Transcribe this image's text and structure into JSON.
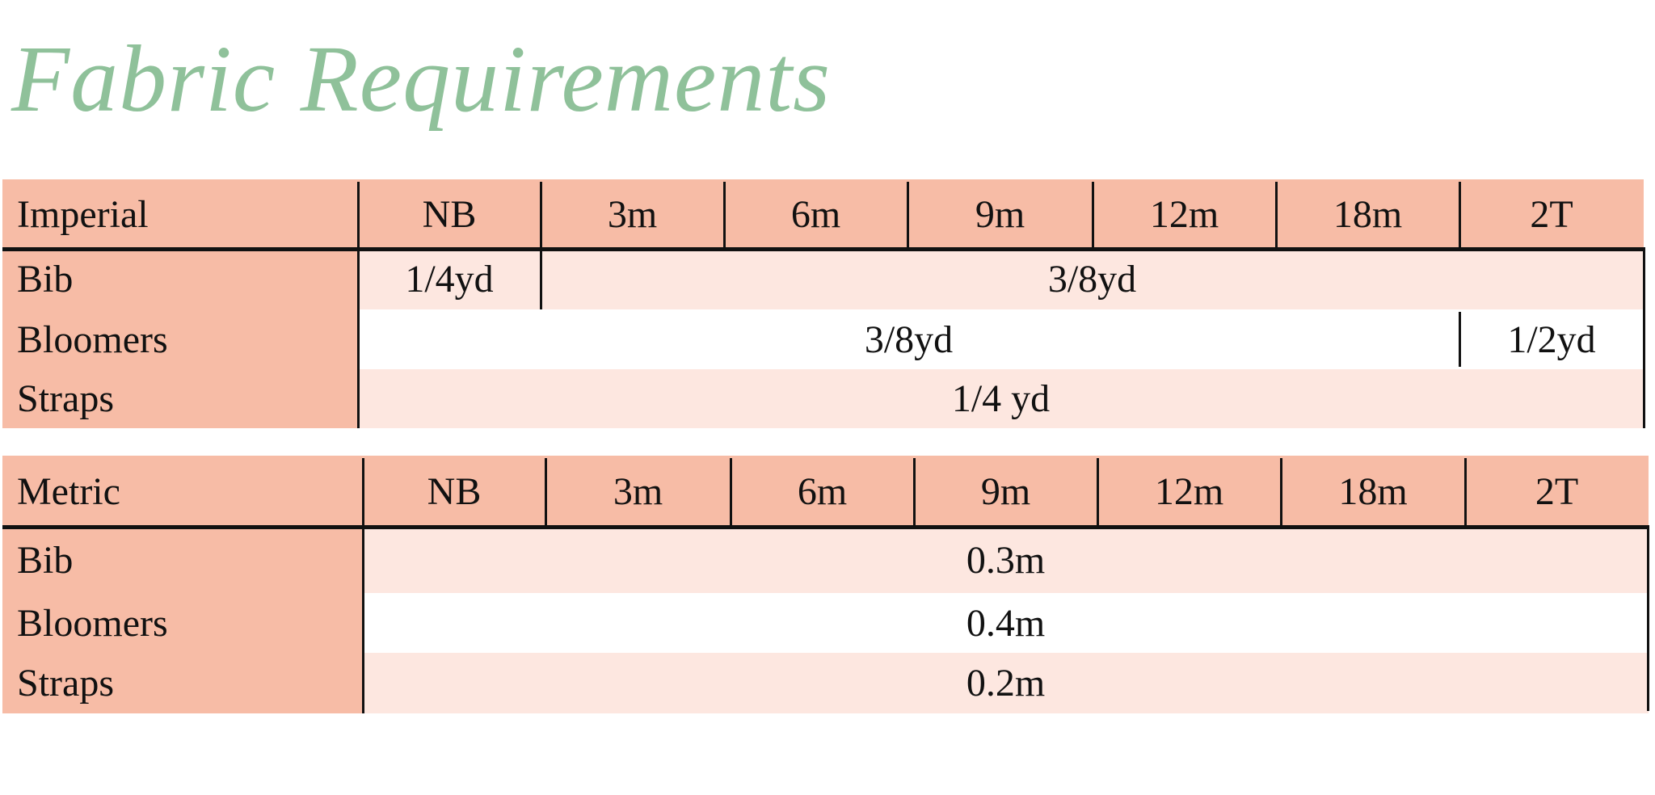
{
  "title": "Fabric Requirements",
  "colors": {
    "title": "#8fc19a",
    "header": "#f7bca6",
    "row_light": "#fde7e0"
  },
  "imperial": {
    "label": "Imperial",
    "sizes": [
      "NB",
      "3m",
      "6m",
      "9m",
      "12m",
      "18m",
      "2T"
    ],
    "rows": [
      {
        "name": "Bib",
        "cells": [
          {
            "value": "1/4yd",
            "span": "NB"
          },
          {
            "value": "3/8yd",
            "span": "3m–2T"
          }
        ]
      },
      {
        "name": "Bloomers",
        "cells": [
          {
            "value": "3/8yd",
            "span": "NB–18m"
          },
          {
            "value": "1/2yd",
            "span": "2T"
          }
        ]
      },
      {
        "name": "Straps",
        "cells": [
          {
            "value": "1/4 yd",
            "span": "NB–2T"
          }
        ]
      }
    ]
  },
  "metric": {
    "label": "Metric",
    "sizes": [
      "NB",
      "3m",
      "6m",
      "9m",
      "12m",
      "18m",
      "2T"
    ],
    "rows": [
      {
        "name": "Bib",
        "cells": [
          {
            "value": "0.3m",
            "span": "NB–2T"
          }
        ]
      },
      {
        "name": "Bloomers",
        "cells": [
          {
            "value": "0.4m",
            "span": "NB–2T"
          }
        ]
      },
      {
        "name": "Straps",
        "cells": [
          {
            "value": "0.2m",
            "span": "NB–2T"
          }
        ]
      }
    ]
  }
}
